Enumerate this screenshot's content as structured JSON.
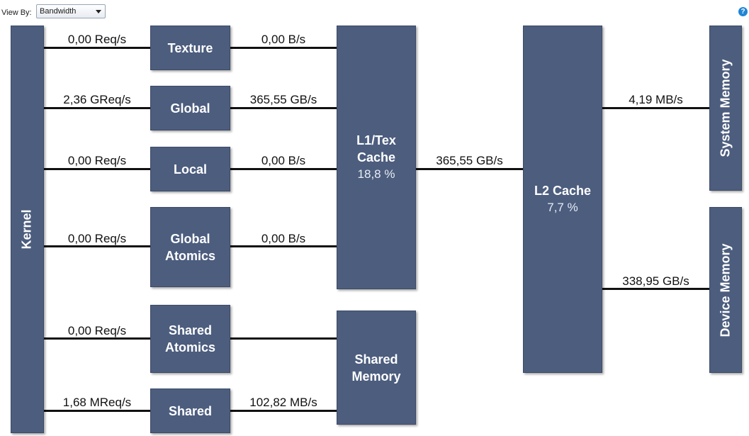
{
  "toolbar": {
    "view_by_label": "View By:",
    "view_by_value": "Bandwidth",
    "help_icon": "?"
  },
  "units": {
    "kernel": "Kernel",
    "texture": "Texture",
    "global": "Global",
    "local": "Local",
    "global_atomics": [
      "Global",
      "Atomics"
    ],
    "shared_atomics": [
      "Shared",
      "Atomics"
    ],
    "shared": "Shared",
    "l1tex": {
      "title": [
        "L1/Tex",
        "Cache"
      ],
      "utilization": "18,8 %"
    },
    "shared_memory": [
      "Shared",
      "Memory"
    ],
    "l2": {
      "title": "L2 Cache",
      "utilization": "7,7 %"
    },
    "system_memory": "System Memory",
    "device_memory": "Device Memory"
  },
  "links": {
    "kernel_texture": "0,00 Req/s",
    "texture_l1": "0,00 B/s",
    "kernel_global": "2,36 GReq/s",
    "global_l1": "365,55 GB/s",
    "kernel_local": "0,00 Req/s",
    "local_l1": "0,00 B/s",
    "kernel_global_atomics": "0,00 Req/s",
    "global_atomics_l1": "0,00 B/s",
    "kernel_shared_atomics": "0,00 Req/s",
    "kernel_shared": "1,68 MReq/s",
    "shared_sharedmem": "102,82 MB/s",
    "l1_l2": "365,55 GB/s",
    "l2_system": "4,19 MB/s",
    "l2_device": "338,95 GB/s"
  },
  "colors": {
    "unit_fill": "#4c5d7e",
    "link": "#111111",
    "help": "#1e86d6"
  }
}
